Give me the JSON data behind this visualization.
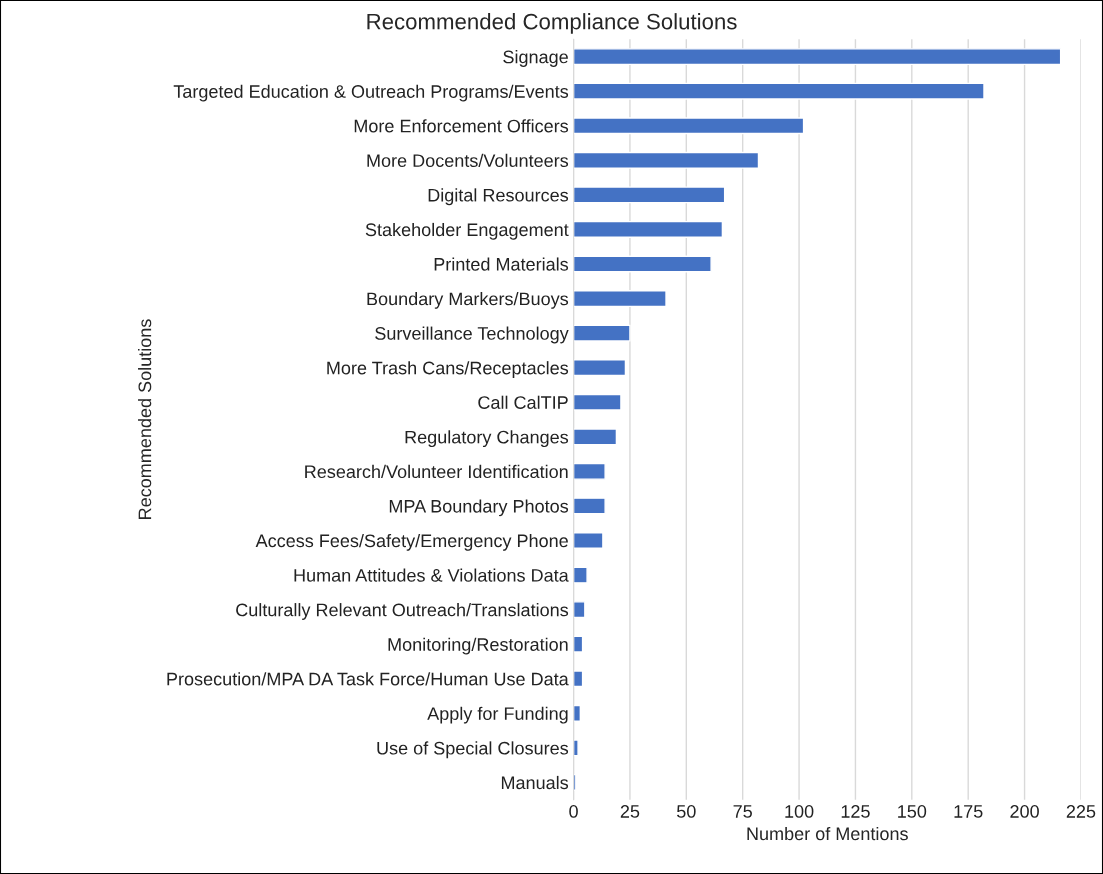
{
  "chart_data": {
    "type": "bar",
    "orientation": "horizontal",
    "title": "Recommended Compliance Solutions",
    "xlabel": "Number of Mentions",
    "ylabel": "Recommended Solutions",
    "categories": [
      "Signage",
      "Targeted Education & Outreach Programs/Events",
      "More Enforcement Officers",
      "More Docents/Volunteers",
      "Digital Resources",
      "Stakeholder Engagement",
      "Printed Materials",
      "Boundary Markers/Buoys",
      "Surveillance Technology",
      "More Trash Cans/Receptacles",
      "Call CalTIP",
      "Regulatory Changes",
      "Research/Volunteer Identification",
      "MPA Boundary Photos",
      "Access Fees/Safety/Emergency Phone",
      "Human Attitudes & Violations Data",
      "Culturally Relevant Outreach/Translations",
      "Monitoring/Restoration",
      "Prosecution/MPA DA Task Force/Human Use Data",
      "Apply for Funding",
      "Use of Special Closures",
      "Manuals"
    ],
    "values": [
      216,
      182,
      102,
      82,
      67,
      66,
      61,
      41,
      25,
      23,
      21,
      19,
      14,
      14,
      13,
      6,
      5,
      4,
      4,
      3,
      2,
      1
    ],
    "color": "#4472c4",
    "xlim": [
      0,
      225
    ],
    "xticks": [
      0,
      25,
      50,
      75,
      100,
      125,
      150,
      175,
      200,
      225
    ],
    "grid": "x"
  }
}
